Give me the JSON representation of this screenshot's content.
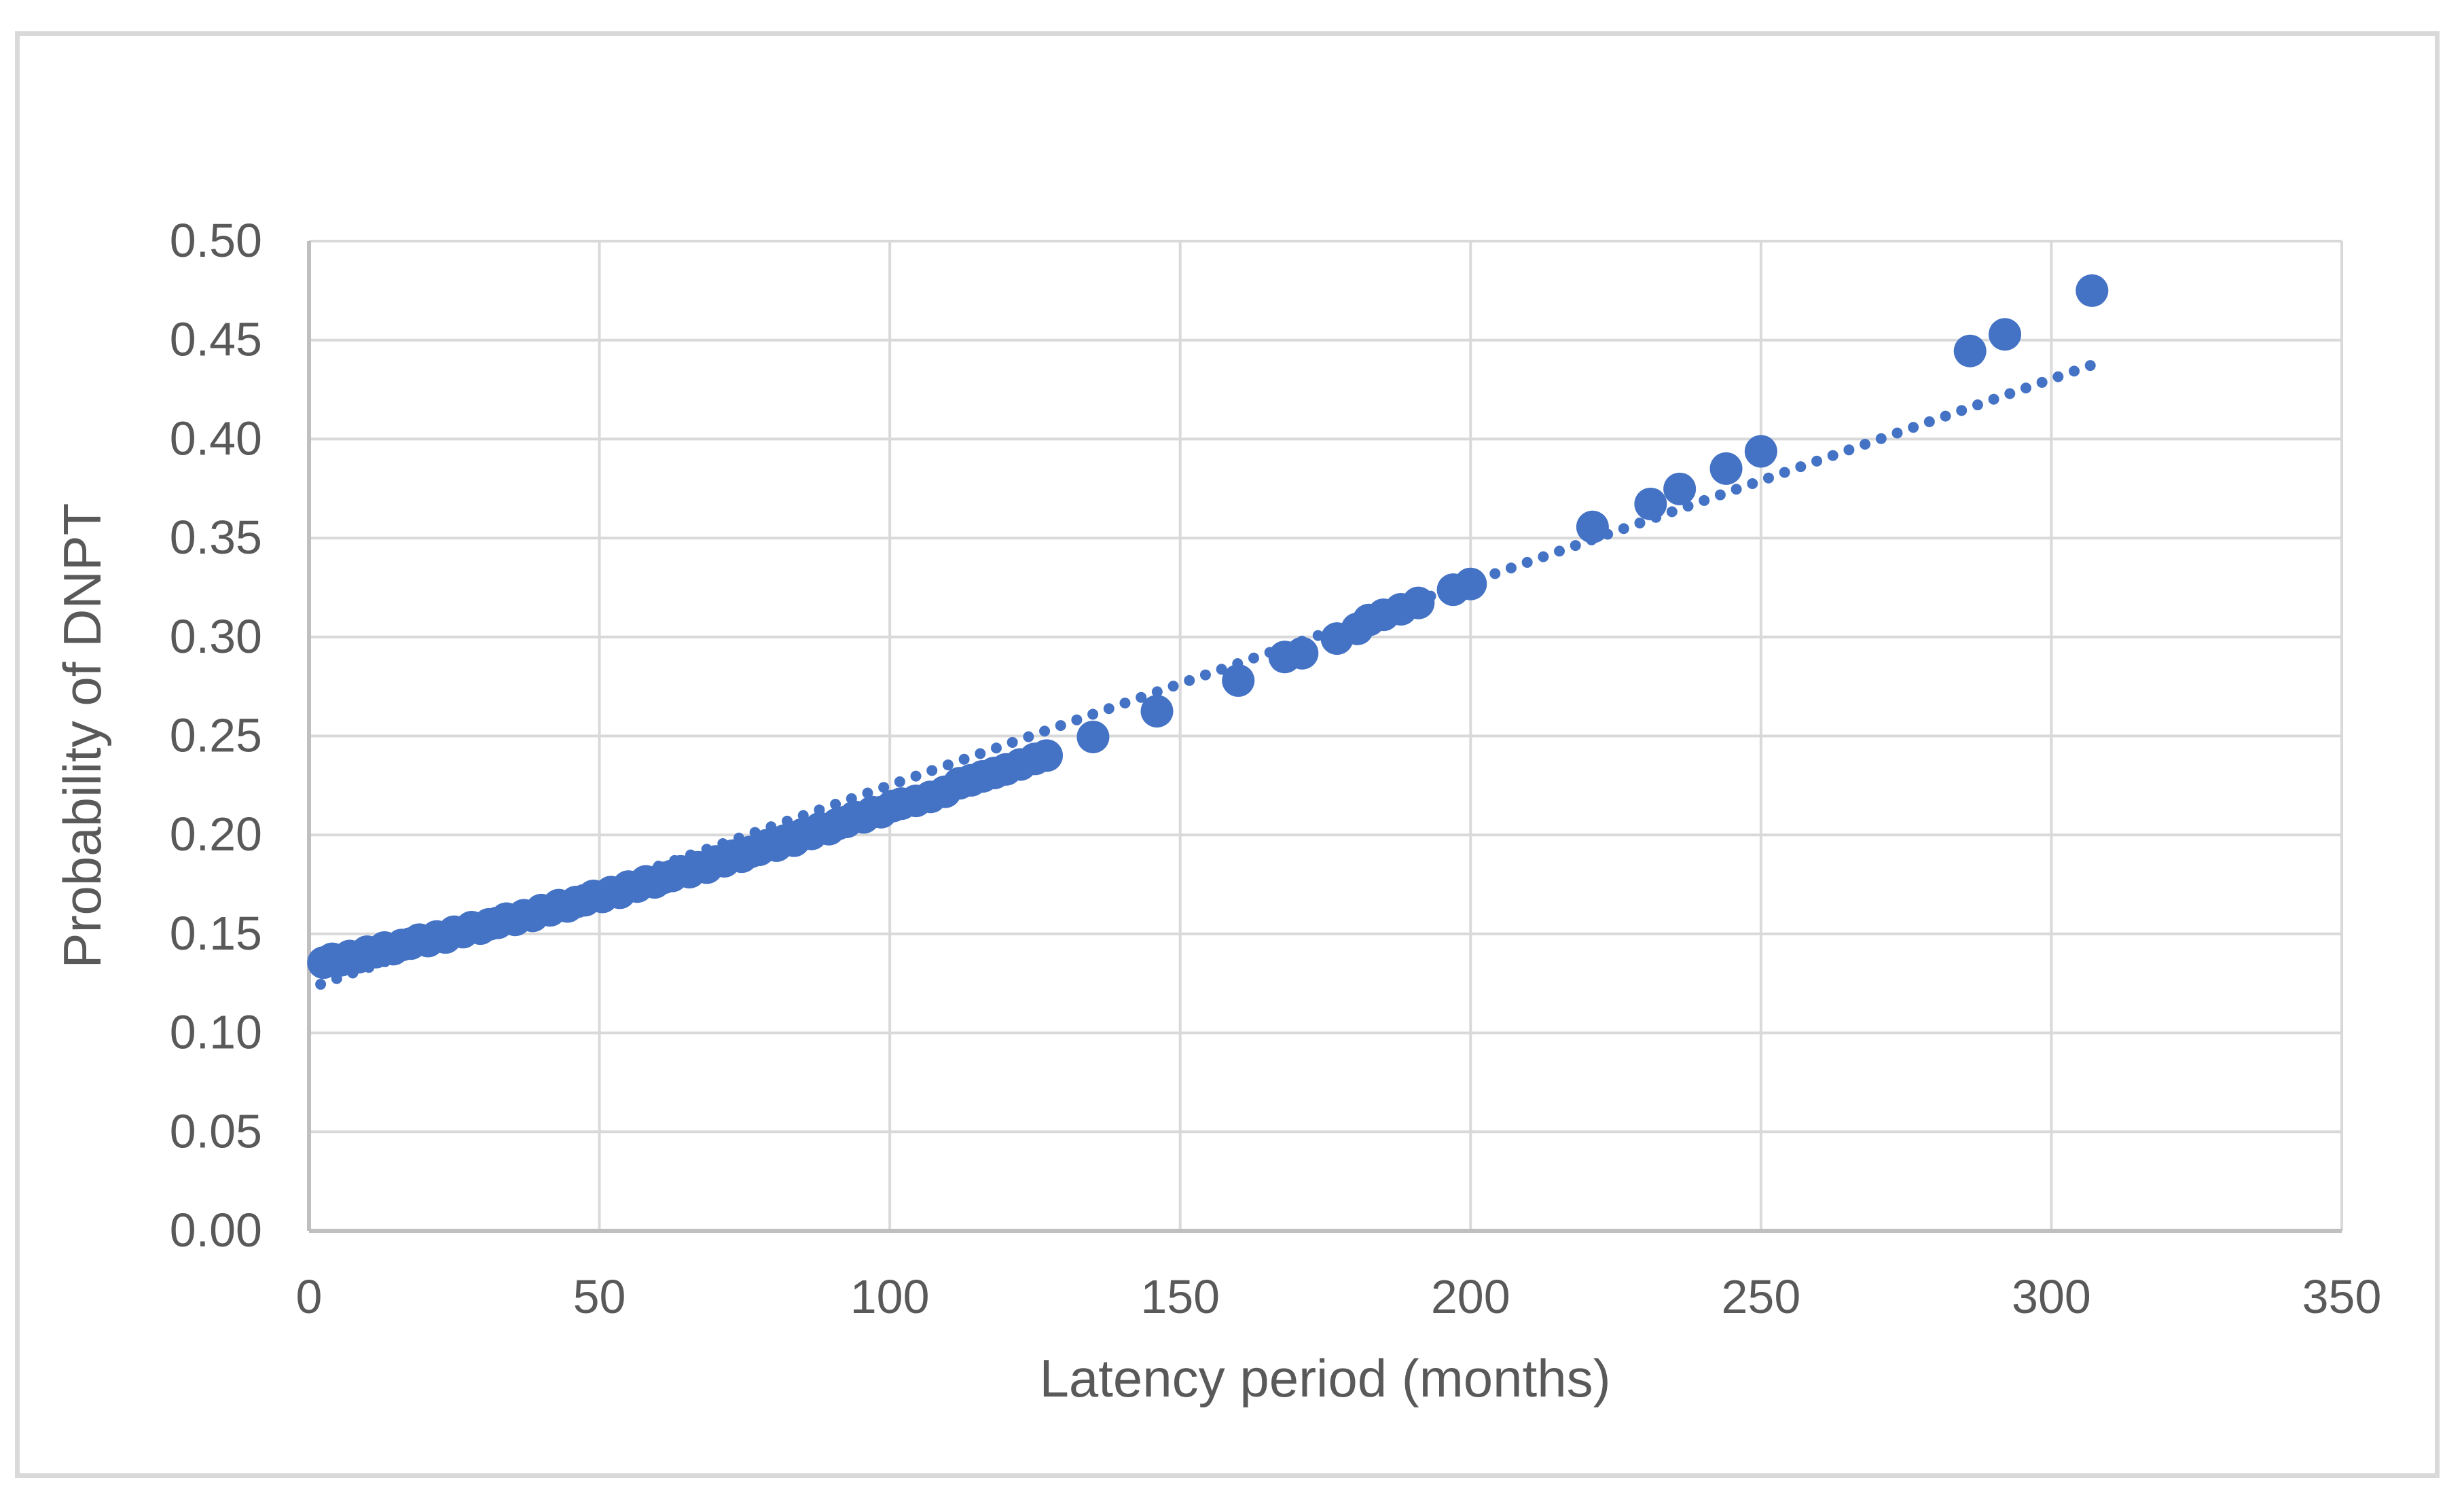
{
  "figure": {
    "background_color": "#ffffff",
    "border_color": "#d9d9d9"
  },
  "chart_data": {
    "type": "scatter",
    "title": "",
    "xlabel": "Latency period (months)",
    "ylabel": "Probability of DNPT",
    "xlim": [
      0,
      350
    ],
    "ylim": [
      0.0,
      0.5
    ],
    "grid": true,
    "x_tick_values": [
      0,
      50,
      100,
      150,
      200,
      250,
      300,
      350
    ],
    "x_tick_labels": [
      "0",
      "50",
      "100",
      "150",
      "200",
      "250",
      "300",
      "350"
    ],
    "y_tick_values": [
      0.0,
      0.05,
      0.1,
      0.15,
      0.2,
      0.25,
      0.3,
      0.35,
      0.4,
      0.45,
      0.5
    ],
    "y_tick_labels": [
      "0.00",
      "0.05",
      "0.10",
      "0.15",
      "0.20",
      "0.25",
      "0.30",
      "0.35",
      "0.40",
      "0.45",
      "0.50"
    ],
    "colors": {
      "marker": "#4472c4",
      "trendline": "#4472c4",
      "gridline": "#d9d9d9",
      "axis_line": "#bfbfbf",
      "tick_text": "#595959",
      "axis_title_text": "#595959"
    },
    "legend": "none",
    "series": [
      {
        "name": "Probability of DNPT",
        "type": "scatter",
        "points": [
          [
            2.5,
            0.1355
          ],
          [
            4,
            0.1374
          ],
          [
            5.5,
            0.1367
          ],
          [
            7,
            0.1388
          ],
          [
            8.5,
            0.1382
          ],
          [
            10,
            0.141
          ],
          [
            11.5,
            0.1408
          ],
          [
            13,
            0.1431
          ],
          [
            14.5,
            0.1423
          ],
          [
            16,
            0.1444
          ],
          [
            17.5,
            0.1451
          ],
          [
            19,
            0.1471
          ],
          [
            20.5,
            0.1464
          ],
          [
            22,
            0.1487
          ],
          [
            23.5,
            0.1482
          ],
          [
            25,
            0.1511
          ],
          [
            26.5,
            0.1509
          ],
          [
            28,
            0.1534
          ],
          [
            29.5,
            0.1527
          ],
          [
            31,
            0.1548
          ],
          [
            32.5,
            0.1556
          ],
          [
            34,
            0.1577
          ],
          [
            35.5,
            0.1571
          ],
          [
            37,
            0.1594
          ],
          [
            38.5,
            0.1591
          ],
          [
            40,
            0.162
          ],
          [
            41.5,
            0.1619
          ],
          [
            43,
            0.1645
          ],
          [
            44.5,
            0.1639
          ],
          [
            46,
            0.1661
          ],
          [
            47.5,
            0.167
          ],
          [
            49,
            0.1692
          ],
          [
            50.5,
            0.1687
          ],
          [
            52,
            0.1711
          ],
          [
            53.5,
            0.1708
          ],
          [
            55,
            0.1739
          ],
          [
            56.5,
            0.1739
          ],
          [
            58,
            0.1765
          ],
          [
            59.5,
            0.176
          ],
          [
            61,
            0.1783
          ],
          [
            62.5,
            0.1793
          ],
          [
            64,
            0.1816
          ],
          [
            65.5,
            0.1812
          ],
          [
            67,
            0.1837
          ],
          [
            68.5,
            0.1835
          ],
          [
            70,
            0.1866
          ],
          [
            71.5,
            0.1867
          ],
          [
            73,
            0.1895
          ],
          [
            74.5,
            0.189
          ],
          [
            76,
            0.1914
          ],
          [
            77.5,
            0.1925
          ],
          [
            79,
            0.1949
          ],
          [
            80.5,
            0.1946
          ],
          [
            82,
            0.1972
          ],
          [
            83.5,
            0.1971
          ],
          [
            85,
            0.2003
          ],
          [
            86.5,
            0.2005
          ],
          [
            88,
            0.2033
          ],
          [
            89.5,
            0.2029
          ],
          [
            91,
            0.2055
          ],
          [
            92.5,
            0.2066
          ],
          [
            94,
            0.2091
          ],
          [
            95.5,
            0.2089
          ],
          [
            97,
            0.2115
          ],
          [
            98.5,
            0.2115
          ],
          [
            100.5,
            0.2146
          ],
          [
            102,
            0.2158
          ],
          [
            104.5,
            0.2172
          ],
          [
            107,
            0.2192
          ],
          [
            109.5,
            0.2218
          ],
          [
            112,
            0.2261
          ],
          [
            114,
            0.2276
          ],
          [
            116,
            0.2296
          ],
          [
            118,
            0.2313
          ],
          [
            120,
            0.2331
          ],
          [
            122.5,
            0.2356
          ],
          [
            125,
            0.2384
          ],
          [
            127,
            0.2401
          ],
          [
            135,
            0.2495
          ],
          [
            146,
            0.2625
          ],
          [
            160,
            0.278
          ],
          [
            168,
            0.2899
          ],
          [
            171,
            0.2918
          ],
          [
            177,
            0.2992
          ],
          [
            180.5,
            0.3041
          ],
          [
            182.5,
            0.3086
          ],
          [
            185,
            0.3112
          ],
          [
            188,
            0.314
          ],
          [
            191,
            0.3172
          ],
          [
            197,
            0.3239
          ],
          [
            200,
            0.3268
          ],
          [
            221,
            0.3556
          ],
          [
            231,
            0.3672
          ],
          [
            236,
            0.3748
          ],
          [
            244,
            0.3851
          ],
          [
            250,
            0.3938
          ],
          [
            286,
            0.4445
          ],
          [
            292,
            0.4529
          ],
          [
            307,
            0.475
          ]
        ]
      },
      {
        "name": "Linear trendline",
        "type": "dotted-line",
        "x_start": 2,
        "x_end": 307.5,
        "slope": 0.001026,
        "intercept": 0.1225
      }
    ]
  }
}
